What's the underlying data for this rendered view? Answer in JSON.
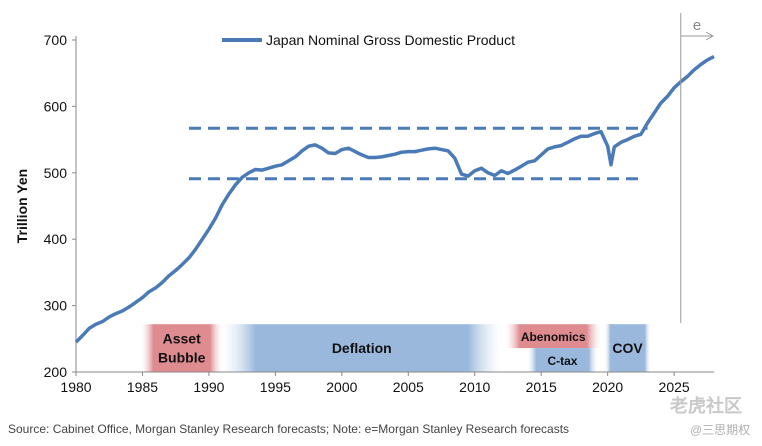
{
  "chart_data": {
    "type": "line",
    "series": [
      {
        "name": "Japan Nominal Gross Domestic Product",
        "color": "#4a7bb7",
        "points": [
          [
            1980.0,
            245
          ],
          [
            1980.5,
            255
          ],
          [
            1981.0,
            266
          ],
          [
            1981.5,
            272
          ],
          [
            1982.0,
            276
          ],
          [
            1982.5,
            283
          ],
          [
            1983.0,
            288
          ],
          [
            1983.5,
            292
          ],
          [
            1984.0,
            298
          ],
          [
            1984.5,
            305
          ],
          [
            1985.0,
            312
          ],
          [
            1985.5,
            321
          ],
          [
            1986.0,
            327
          ],
          [
            1986.5,
            335
          ],
          [
            1987.0,
            345
          ],
          [
            1987.5,
            353
          ],
          [
            1988.0,
            362
          ],
          [
            1988.5,
            372
          ],
          [
            1989.0,
            385
          ],
          [
            1989.5,
            400
          ],
          [
            1990.0,
            415
          ],
          [
            1990.5,
            432
          ],
          [
            1991.0,
            452
          ],
          [
            1991.5,
            468
          ],
          [
            1992.0,
            482
          ],
          [
            1992.5,
            493
          ],
          [
            1993.0,
            500
          ],
          [
            1993.5,
            505
          ],
          [
            1994.0,
            504
          ],
          [
            1994.5,
            507
          ],
          [
            1995.0,
            510
          ],
          [
            1995.5,
            512
          ],
          [
            1996.0,
            518
          ],
          [
            1996.5,
            524
          ],
          [
            1997.0,
            533
          ],
          [
            1997.5,
            540
          ],
          [
            1998.0,
            542
          ],
          [
            1998.5,
            537
          ],
          [
            1999.0,
            530
          ],
          [
            1999.5,
            529
          ],
          [
            2000.0,
            535
          ],
          [
            2000.5,
            537
          ],
          [
            2001.0,
            532
          ],
          [
            2001.5,
            527
          ],
          [
            2002.0,
            523
          ],
          [
            2002.5,
            523
          ],
          [
            2003.0,
            524
          ],
          [
            2003.5,
            526
          ],
          [
            2004.0,
            528
          ],
          [
            2004.5,
            531
          ],
          [
            2005.0,
            532
          ],
          [
            2005.5,
            532
          ],
          [
            2006.0,
            534
          ],
          [
            2006.5,
            536
          ],
          [
            2007.0,
            537
          ],
          [
            2007.5,
            535
          ],
          [
            2008.0,
            533
          ],
          [
            2008.5,
            522
          ],
          [
            2009.0,
            498
          ],
          [
            2009.5,
            495
          ],
          [
            2010.0,
            503
          ],
          [
            2010.5,
            507
          ],
          [
            2011.0,
            500
          ],
          [
            2011.5,
            496
          ],
          [
            2012.0,
            503
          ],
          [
            2012.5,
            499
          ],
          [
            2013.0,
            504
          ],
          [
            2013.5,
            510
          ],
          [
            2014.0,
            516
          ],
          [
            2014.5,
            518
          ],
          [
            2015.0,
            527
          ],
          [
            2015.5,
            536
          ],
          [
            2016.0,
            539
          ],
          [
            2016.5,
            541
          ],
          [
            2017.0,
            546
          ],
          [
            2017.5,
            551
          ],
          [
            2018.0,
            555
          ],
          [
            2018.5,
            555
          ],
          [
            2019.0,
            559
          ],
          [
            2019.5,
            562
          ],
          [
            2020.0,
            540
          ],
          [
            2020.25,
            512
          ],
          [
            2020.5,
            539
          ],
          [
            2021.0,
            546
          ],
          [
            2021.5,
            550
          ],
          [
            2022.0,
            555
          ],
          [
            2022.5,
            558
          ],
          [
            2023.0,
            575
          ],
          [
            2023.5,
            590
          ],
          [
            2024.0,
            605
          ],
          [
            2024.5,
            615
          ],
          [
            2025.0,
            628
          ],
          [
            2025.5,
            637
          ],
          [
            2026.0,
            645
          ],
          [
            2026.5,
            655
          ],
          [
            2027.0,
            663
          ],
          [
            2027.5,
            670
          ],
          [
            2028.0,
            675
          ]
        ]
      }
    ],
    "reference_lines": [
      {
        "y": 567,
        "x_start": 1988.5,
        "x_end": 2023.0,
        "style": "dashed"
      },
      {
        "y": 491,
        "x_start": 1988.5,
        "x_end": 2022.5,
        "style": "dashed"
      }
    ],
    "forecast_marker": {
      "x": 2025.5,
      "label": "e"
    },
    "bands": [
      {
        "label_lines": [
          "Asset",
          "Bubble"
        ],
        "x_start": 1984.9,
        "x_end": 1991.0,
        "color": "#d9777d"
      },
      {
        "label_lines": [
          "Deflation"
        ],
        "x_start": 1991.0,
        "x_end": 2012.0,
        "color": "#7fa4d2"
      },
      {
        "label_lines": [
          "Abenomics"
        ],
        "x_start": 2012.3,
        "x_end": 2019.5,
        "color": "#d9777d",
        "half": "top"
      },
      {
        "label_lines": [
          "C-tax"
        ],
        "x_start": 2014.0,
        "x_end": 2019.2,
        "color": "#7fa4d2",
        "half": "bottom"
      },
      {
        "label_lines": [
          "COV"
        ],
        "x_start": 2019.8,
        "x_end": 2023.2,
        "color": "#7fa4d2"
      }
    ],
    "title": "",
    "xlabel": "",
    "ylabel": "Trillion Yen",
    "xlim": [
      1980,
      2028
    ],
    "ylim": [
      200,
      700
    ],
    "xticks": [
      "1980",
      "1985",
      "1990",
      "1995",
      "2000",
      "2005",
      "2010",
      "2015",
      "2020",
      "2025"
    ],
    "yticks": [
      "200",
      "300",
      "400",
      "500",
      "600",
      "700"
    ],
    "legend": "Japan Nominal Gross Domestic Product",
    "legend_position": "top-center"
  },
  "source": "Source: Cabinet Office, Morgan Stanley Research forecasts; Note: e=Morgan Stanley Research forecasts",
  "watermark": {
    "main": "老虎社区",
    "sub": "@三思期权"
  }
}
